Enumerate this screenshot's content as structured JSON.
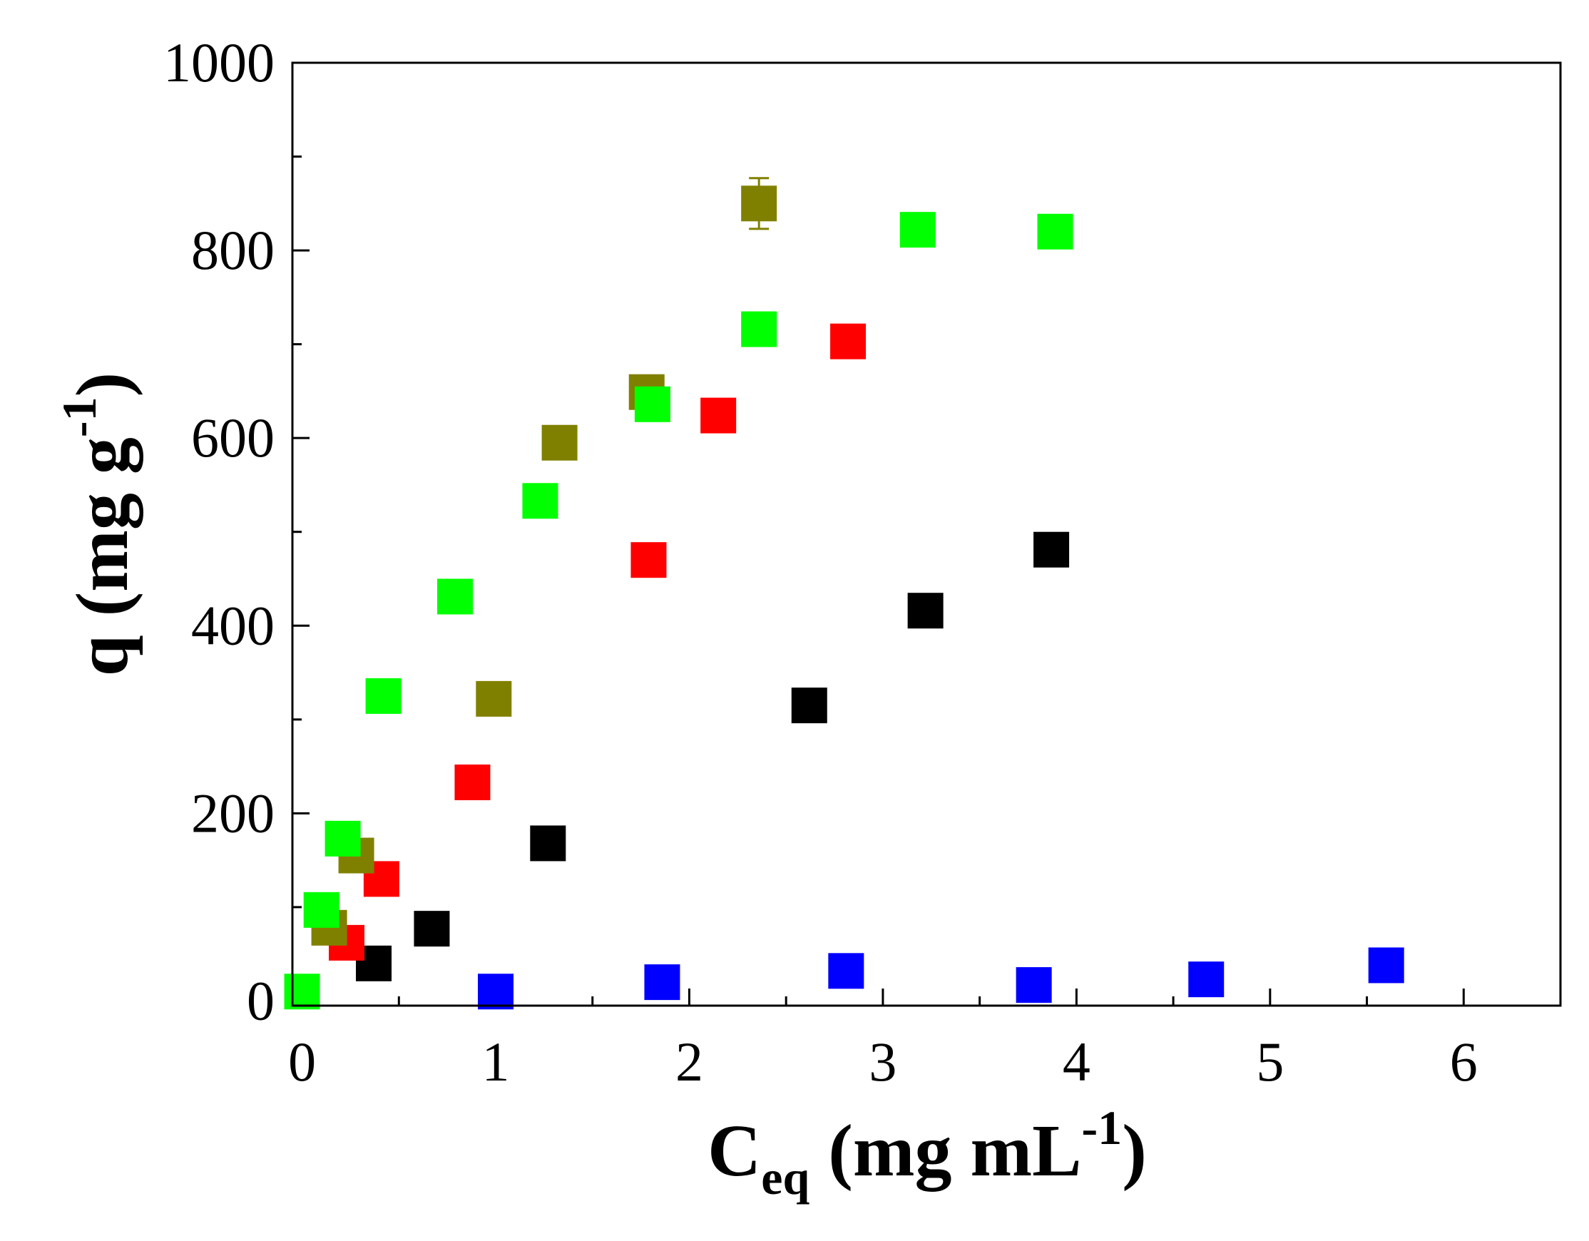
{
  "chart_data": {
    "type": "scatter",
    "title": "",
    "xlabel": {
      "main": "C",
      "sub": "eq",
      "rest": " (mg mL",
      "sup": "-1",
      "close": ")"
    },
    "ylabel": {
      "main": "q (mg g",
      "sup": "-1",
      "close": ")"
    },
    "xlim": [
      -0.05,
      6.5
    ],
    "ylim": [
      -5,
      1000
    ],
    "x_ticks": [
      0,
      1,
      2,
      3,
      4,
      5,
      6
    ],
    "x_tick_labels": [
      "0",
      "1",
      "2",
      "3",
      "4",
      "5",
      "6"
    ],
    "y_ticks": [
      0,
      200,
      400,
      600,
      800,
      1000
    ],
    "y_tick_labels": [
      "0",
      "200",
      "400",
      "600",
      "800",
      "1000"
    ],
    "marker": "square",
    "series": [
      {
        "name": "black",
        "color": "#000000",
        "points": [
          [
            0.37,
            40
          ],
          [
            0.67,
            77
          ],
          [
            1.27,
            168
          ],
          [
            2.62,
            315
          ],
          [
            3.22,
            416
          ],
          [
            3.87,
            481
          ]
        ]
      },
      {
        "name": "red",
        "color": "#ff0000",
        "points": [
          [
            0.23,
            62
          ],
          [
            0.41,
            130
          ],
          [
            0.88,
            233
          ],
          [
            1.79,
            470
          ],
          [
            2.15,
            624
          ],
          [
            2.82,
            703
          ]
        ]
      },
      {
        "name": "blue",
        "color": "#0000ff",
        "points": [
          [
            1.0,
            10
          ],
          [
            1.86,
            20
          ],
          [
            2.81,
            32
          ],
          [
            3.78,
            17
          ],
          [
            4.67,
            23
          ],
          [
            5.6,
            38
          ]
        ]
      },
      {
        "name": "olive",
        "color": "#808000",
        "points": [
          [
            0.14,
            78
          ],
          [
            0.28,
            155
          ],
          [
            0.99,
            322
          ],
          [
            1.33,
            595
          ],
          [
            1.78,
            649
          ],
          [
            2.36,
            850
          ]
        ],
        "errors": [
          0,
          0,
          0,
          0,
          0,
          27
        ]
      },
      {
        "name": "green",
        "color": "#00ff00",
        "points": [
          [
            0.0,
            10
          ],
          [
            0.1,
            97
          ],
          [
            0.21,
            173
          ],
          [
            0.42,
            325
          ],
          [
            0.79,
            431
          ],
          [
            1.23,
            533
          ],
          [
            1.81,
            636
          ],
          [
            2.36,
            716
          ],
          [
            3.18,
            822
          ],
          [
            3.89,
            820
          ]
        ]
      }
    ]
  }
}
